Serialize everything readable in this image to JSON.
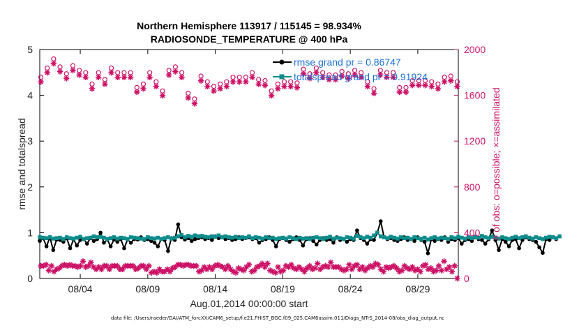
{
  "chart_data": {
    "type": "line",
    "title_line1": "Northern Hemisphere 113917 / 115145 = 98.934%",
    "title_line2": "RADIOSONDE_TEMPERATURE @ 400 hPa",
    "xlabel": "Aug.01,2014 00:00:00 start",
    "ylabel_left": "rmse and totalspread",
    "ylabel_right": "# of obs: o=possible; ×=assimilated",
    "footer": "data file: /Users/raeder/DAI/ATM_forcXX/CAM6_setup/f.e21.FHIST_BGC.f09_025.CAM6assim.011/Diags_NTrS_2014-08/obs_diag_output.nc",
    "xlim": [
      1,
      32
    ],
    "ylim_left": [
      0,
      5
    ],
    "ylim_right": [
      0,
      2000
    ],
    "x_ticks": [
      {
        "day": 4,
        "label": "08/04"
      },
      {
        "day": 9,
        "label": "08/09"
      },
      {
        "day": 14,
        "label": "08/14"
      },
      {
        "day": 19,
        "label": "08/19"
      },
      {
        "day": 24,
        "label": "08/24"
      },
      {
        "day": 29,
        "label": "08/29"
      }
    ],
    "y_ticks_left": [
      "0",
      "1",
      "2",
      "3",
      "4",
      "5"
    ],
    "y_ticks_right": [
      "0",
      "400",
      "800",
      "1200",
      "1600",
      "2000"
    ],
    "legend": [
      {
        "name": "rmse",
        "label": "rmse  grand pr = 0.86747",
        "color": "#000000"
      },
      {
        "name": "totalspread",
        "label": "totalspread  grand pr = 0.91924",
        "color": "#0f8c8c"
      }
    ],
    "colors": {
      "rmse": "#000000",
      "totalspread": "#0f8c8c",
      "obs": "#cc1166"
    },
    "x_start_day": 1.0,
    "x_step_days": 0.25,
    "series": [
      {
        "name": "rmse",
        "values": [
          0.82,
          0.88,
          0.7,
          0.9,
          0.62,
          0.85,
          0.84,
          0.8,
          0.88,
          0.66,
          0.85,
          0.72,
          0.84,
          0.86,
          0.76,
          0.88,
          0.82,
          0.86,
          1.0,
          0.78,
          0.85,
          0.7,
          0.85,
          0.8,
          0.86,
          0.66,
          0.85,
          0.78,
          0.86,
          0.85,
          0.9,
          0.84,
          0.86,
          0.82,
          0.78,
          0.7,
          0.86,
          0.84,
          0.6,
          0.88,
          0.84,
          1.18,
          0.9,
          0.85,
          0.88,
          0.82,
          0.86,
          0.88,
          0.9,
          0.86,
          0.88,
          0.84,
          0.92,
          0.88,
          0.9,
          0.86,
          0.88,
          0.84,
          0.86,
          0.9,
          0.86,
          0.88,
          0.9,
          0.86,
          0.88,
          0.78,
          0.84,
          0.86,
          0.9,
          0.84,
          0.7,
          0.86,
          0.88,
          0.84,
          0.8,
          0.86,
          0.9,
          0.84,
          0.72,
          0.86,
          0.88,
          0.82,
          0.74,
          0.84,
          0.88,
          0.84,
          0.86,
          0.78,
          0.9,
          0.84,
          0.86,
          0.8,
          0.86,
          0.84,
          1.05,
          0.88,
          0.84,
          0.76,
          0.86,
          0.84,
          1.0,
          1.25,
          0.9,
          0.86,
          0.88,
          0.84,
          0.82,
          0.86,
          0.9,
          0.84,
          0.86,
          0.82,
          0.9,
          0.84,
          0.8,
          0.55,
          0.86,
          0.82,
          0.86,
          0.84,
          0.9,
          0.8,
          0.86,
          0.84,
          0.88,
          0.76,
          0.84,
          0.86,
          0.82,
          0.9,
          0.86,
          0.84,
          0.76,
          0.86,
          1.05,
          0.84,
          0.62,
          0.86,
          0.8,
          0.7,
          0.84,
          0.86,
          0.66,
          0.84,
          0.9,
          0.86,
          0.84,
          0.8,
          0.68,
          0.56,
          0.86,
          0.84,
          0.9,
          0.86,
          0.92
        ]
      },
      {
        "name": "totalspread",
        "values": [
          0.9,
          0.89,
          0.88,
          0.9,
          0.87,
          0.88,
          0.89,
          0.86,
          0.9,
          0.88,
          0.87,
          0.89,
          0.91,
          0.86,
          0.88,
          0.89,
          0.92,
          0.9,
          0.91,
          0.89,
          0.86,
          0.88,
          0.9,
          0.87,
          0.89,
          0.88,
          0.86,
          0.9,
          0.89,
          0.88,
          0.87,
          0.86,
          0.9,
          0.88,
          0.87,
          0.89,
          0.86,
          0.88,
          0.9,
          0.87,
          0.89,
          0.92,
          0.95,
          0.9,
          0.93,
          0.91,
          0.94,
          0.92,
          0.93,
          0.91,
          0.9,
          0.92,
          0.91,
          0.94,
          0.9,
          0.92,
          0.9,
          0.89,
          0.91,
          0.88,
          0.9,
          0.89,
          0.92,
          0.88,
          0.9,
          0.89,
          0.87,
          0.9,
          0.88,
          0.89,
          0.86,
          0.88,
          0.89,
          0.87,
          0.9,
          0.88,
          0.86,
          0.89,
          0.87,
          0.88,
          0.86,
          0.89,
          0.9,
          0.88,
          0.86,
          0.89,
          0.91,
          0.87,
          0.89,
          0.88,
          0.86,
          0.9,
          0.89,
          0.87,
          0.93,
          0.9,
          0.88,
          0.91,
          0.89,
          0.94,
          1.0,
          0.92,
          0.9,
          0.88,
          0.91,
          0.89,
          0.87,
          0.9,
          0.88,
          0.89,
          0.86,
          0.9,
          0.88,
          0.86,
          0.89,
          0.85,
          0.88,
          0.9,
          0.87,
          0.89,
          0.88,
          0.86,
          0.9,
          0.88,
          0.91,
          0.89,
          0.87,
          0.9,
          0.88,
          0.91,
          0.89,
          0.93,
          0.9,
          0.88,
          0.91,
          0.89,
          0.87,
          0.9,
          0.88,
          0.86,
          0.89,
          0.91,
          0.88,
          0.9,
          0.92,
          0.89,
          0.87,
          0.9,
          0.88,
          0.86,
          0.89,
          0.91,
          0.9,
          0.88,
          0.92
        ]
      },
      {
        "name": "obs_possible",
        "values": [
          1740,
          1820,
          1900,
          1830,
          1770,
          1840,
          1800,
          1780,
          1680,
          1780,
          1720,
          1820,
          1780,
          1780,
          1780,
          1650,
          1680,
          1780,
          1700,
          1620,
          1800,
          1830,
          1780,
          1600,
          1550,
          1750,
          1700,
          1660,
          1680,
          1700,
          1740,
          1740,
          1740,
          1780,
          1720,
          1710,
          1620,
          1680,
          1700,
          1700,
          1690,
          1810,
          1770,
          1820,
          1780,
          1760,
          1760,
          1790,
          1770,
          1800,
          1780,
          1700,
          1640,
          1800,
          1780,
          1780,
          1650,
          1650,
          1710,
          1710,
          1710,
          1700,
          1680,
          1740,
          1750,
          1700
        ]
      },
      {
        "name": "obs_assimilated",
        "values": [
          1730,
          1810,
          1890,
          1820,
          1760,
          1830,
          1790,
          1770,
          1670,
          1770,
          1710,
          1810,
          1770,
          1770,
          1770,
          1640,
          1670,
          1770,
          1690,
          1610,
          1790,
          1820,
          1770,
          1590,
          1540,
          1740,
          1690,
          1650,
          1670,
          1690,
          1730,
          1730,
          1730,
          1770,
          1710,
          1700,
          1610,
          1670,
          1690,
          1690,
          1680,
          1800,
          1760,
          1810,
          1770,
          1750,
          1750,
          1780,
          1760,
          1790,
          1770,
          1690,
          1630,
          1790,
          1770,
          1770,
          1640,
          1640,
          1700,
          1700,
          1700,
          1690,
          1670,
          1730,
          1740,
          1690
        ]
      },
      {
        "name": "obs_possible_low",
        "values": [
          110,
          110,
          120,
          70,
          110,
          60,
          80,
          90,
          110,
          120,
          110,
          120,
          110,
          110,
          100,
          110,
          150,
          100,
          110,
          140,
          100,
          80,
          100,
          80,
          110,
          110,
          80,
          110,
          110,
          110,
          80,
          80,
          110,
          110,
          110,
          110,
          80,
          90,
          110,
          110,
          80,
          110,
          50,
          60,
          50,
          80,
          60,
          60,
          80,
          60,
          90,
          100,
          120,
          120,
          110,
          120,
          120,
          110,
          110,
          110,
          60,
          70,
          100,
          80,
          100,
          80,
          110,
          120,
          110,
          100,
          80,
          110,
          80,
          60,
          50,
          90,
          80,
          70,
          100,
          120,
          60,
          70,
          100,
          110,
          130,
          100,
          130,
          70,
          60,
          50,
          100,
          60,
          70,
          110,
          100,
          120,
          90,
          80,
          100,
          80,
          60,
          90,
          110,
          80,
          90,
          130,
          80,
          100,
          110,
          100,
          140,
          100,
          100,
          100,
          80,
          70,
          80,
          120,
          80,
          110,
          120,
          80,
          100,
          70,
          90,
          110,
          100,
          130,
          120,
          80,
          60,
          100,
          90,
          100,
          110,
          90,
          60,
          70,
          110,
          90,
          80,
          100,
          70,
          80,
          60,
          110,
          120,
          80,
          90,
          60,
          70,
          110,
          70,
          150,
          80,
          100,
          60,
          110,
          0
        ]
      }
    ]
  }
}
